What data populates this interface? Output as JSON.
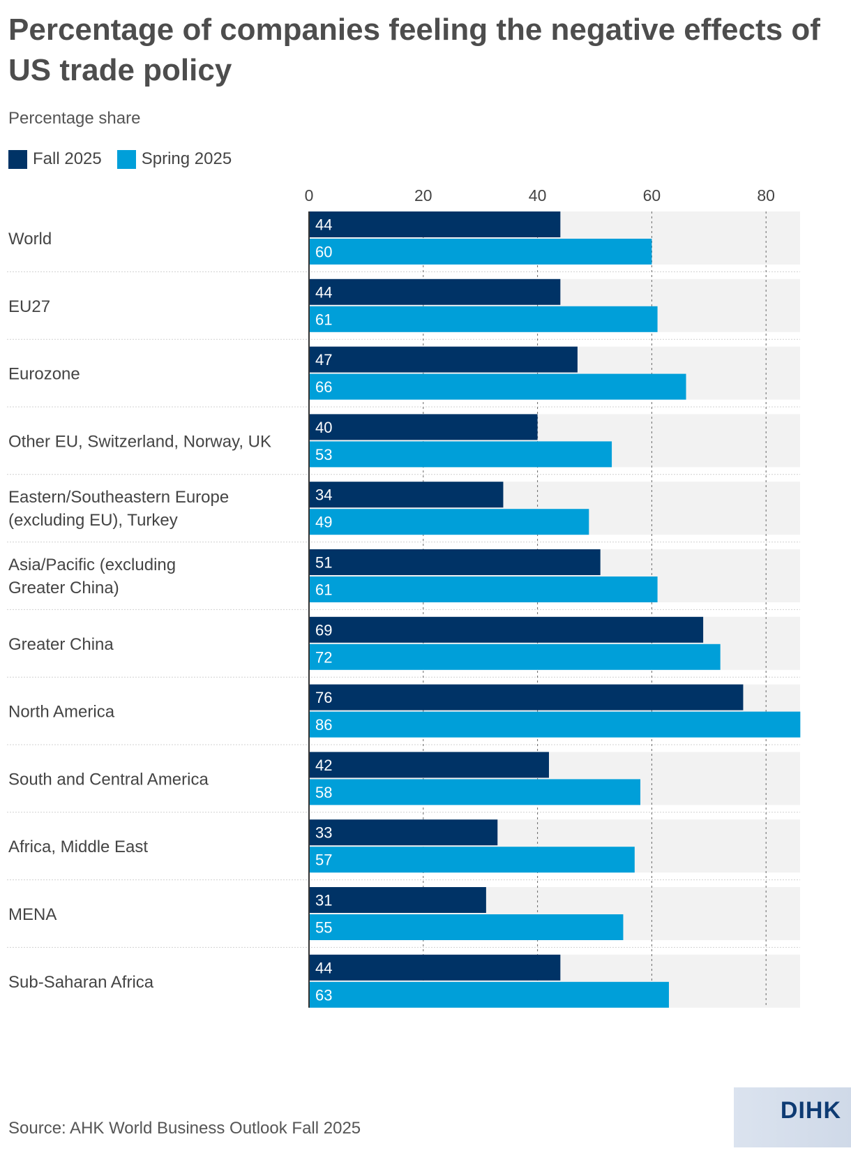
{
  "header": {
    "title": "Percentage of companies feeling the negative effects of US trade policy",
    "subtitle": "Percentage share"
  },
  "legend": [
    {
      "label": "Fall 2025",
      "color": "#003366"
    },
    {
      "label": "Spring 2025",
      "color": "#009fd9"
    }
  ],
  "footer": {
    "source": "Source: AHK World Business Outlook Fall 2025",
    "logo_text": "DIHK"
  },
  "chart_data": {
    "type": "bar",
    "orientation": "horizontal",
    "title": "Percentage of companies feeling the negative effects of US trade policy",
    "subtitle": "Percentage share",
    "categories": [
      "World",
      "EU27",
      "Eurozone",
      "Other EU, Switzerland, Norway, UK",
      "Eastern/Southeastern Europe (excluding EU), Turkey",
      "Asia/Pacific (excluding Greater China)",
      "Greater China",
      "North America",
      "South and Central America",
      "Africa, Middle East",
      "MENA",
      "Sub-Saharan Africa"
    ],
    "series": [
      {
        "name": "Fall 2025",
        "color": "#003366",
        "values": [
          44,
          44,
          47,
          40,
          34,
          51,
          69,
          76,
          42,
          33,
          31,
          44
        ]
      },
      {
        "name": "Spring 2025",
        "color": "#009fd9",
        "values": [
          60,
          61,
          66,
          53,
          49,
          61,
          72,
          86,
          58,
          57,
          55,
          63
        ]
      }
    ],
    "x_ticks": [
      0,
      20,
      40,
      60,
      80
    ],
    "xlim": [
      0,
      86
    ],
    "grid": true,
    "legend_position": "top-left",
    "data_labels": true,
    "source": "Source: AHK World Business Outlook Fall 2025"
  }
}
